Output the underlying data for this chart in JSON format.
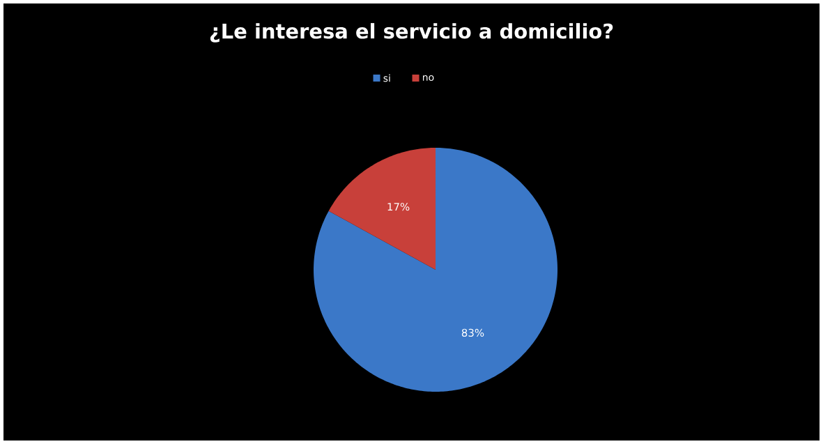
{
  "chart_data": {
    "type": "pie",
    "title": "¿Le interesa el servicio a domicilio?",
    "categories": [
      "si",
      "no"
    ],
    "values": [
      83,
      17
    ],
    "colors": [
      "#3b78c8",
      "#c8403a"
    ],
    "value_labels": [
      "83%",
      "17%"
    ],
    "legend": "top"
  }
}
